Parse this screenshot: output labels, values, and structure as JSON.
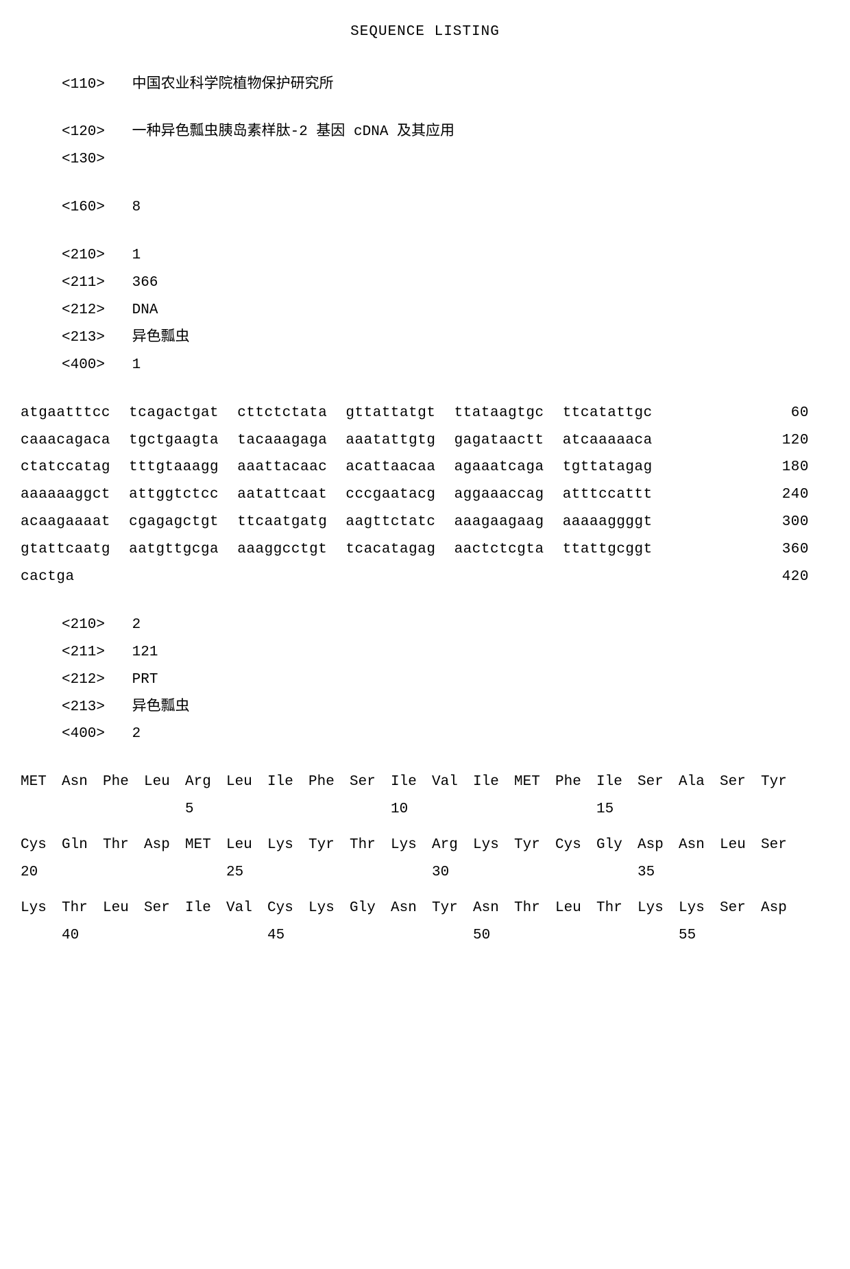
{
  "title": "SEQUENCE LISTING",
  "headers": {
    "h110": {
      "tag": "<110>",
      "val": "中国农业科学院植物保护研究所"
    },
    "h120": {
      "tag": "<120>",
      "val": "一种异色瓢虫胰岛素样肽-2 基因 cDNA 及其应用"
    },
    "h130": {
      "tag": "<130>",
      "val": ""
    },
    "h160": {
      "tag": "<160>",
      "val": "8"
    }
  },
  "seq1_meta": {
    "m210": {
      "tag": "<210>",
      "val": "1"
    },
    "m211": {
      "tag": "<211>",
      "val": "366"
    },
    "m212": {
      "tag": "<212>",
      "val": "DNA"
    },
    "m213": {
      "tag": "<213>",
      "val": "异色瓢虫"
    },
    "m400": {
      "tag": "<400>",
      "val": "1"
    }
  },
  "seq1": {
    "l1": {
      "g1": "atgaatttcc",
      "g2": "tcagactgat",
      "g3": "cttctctata",
      "g4": "gttattatgt",
      "g5": "ttataagtgc",
      "g6": "ttcatattgc",
      "n": "60"
    },
    "l2": {
      "g1": "caaacagaca",
      "g2": "tgctgaagta",
      "g3": "tacaaagaga",
      "g4": "aaatattgtg",
      "g5": "gagataactt",
      "g6": "atcaaaaaca",
      "n": "120"
    },
    "l3": {
      "g1": "ctatccatag",
      "g2": "tttgtaaagg",
      "g3": "aaattacaac",
      "g4": "acattaacaa",
      "g5": "agaaatcaga",
      "g6": "tgttatagag",
      "n": "180"
    },
    "l4": {
      "g1": "aaaaaaggct",
      "g2": "attggtctcc",
      "g3": "aatattcaat",
      "g4": "cccgaatacg",
      "g5": "aggaaaccag",
      "g6": "atttccattt",
      "n": "240"
    },
    "l5": {
      "g1": "acaagaaaat",
      "g2": "cgagagctgt",
      "g3": "ttcaatgatg",
      "g4": "aagttctatc",
      "g5": "aaagaagaag",
      "g6": "aaaaaggggt",
      "n": "300"
    },
    "l6": {
      "g1": "gtattcaatg",
      "g2": "aatgttgcga",
      "g3": "aaaggcctgt",
      "g4": "tcacatagag",
      "g5": "aactctcgta",
      "g6": "ttattgcggt",
      "n": "360"
    },
    "l7": {
      "g1": "cactga",
      "g2": "",
      "g3": "",
      "g4": "",
      "g5": "",
      "g6": "",
      "n": "420"
    }
  },
  "seq2_meta": {
    "m210": {
      "tag": "<210>",
      "val": "2"
    },
    "m211": {
      "tag": "<211>",
      "val": "121"
    },
    "m212": {
      "tag": "<212>",
      "val": "PRT"
    },
    "m213": {
      "tag": "<213>",
      "val": "异色瓢虫"
    },
    "m400": {
      "tag": "<400>",
      "val": "2"
    }
  },
  "prt": {
    "r1": [
      "MET",
      "Asn",
      "Phe",
      "Leu",
      "Arg",
      "Leu",
      "Ile",
      "Phe",
      "Ser",
      "Ile",
      "Val",
      "Ile",
      "MET",
      "Phe",
      "Ile",
      "Ser",
      "Ala",
      "Ser",
      "Tyr"
    ],
    "n1": {
      "p5": "5",
      "p10": "10",
      "p15": "15"
    },
    "r2": [
      "Cys",
      "Gln",
      "Thr",
      "Asp",
      "MET",
      "Leu",
      "Lys",
      "Tyr",
      "Thr",
      "Lys",
      "Arg",
      "Lys",
      "Tyr",
      "Cys",
      "Gly",
      "Asp",
      "Asn",
      "Leu",
      "Ser"
    ],
    "n2": {
      "p20": "20",
      "p25": "25",
      "p30": "30",
      "p35": "35"
    },
    "r3": [
      "Lys",
      "Thr",
      "Leu",
      "Ser",
      "Ile",
      "Val",
      "Cys",
      "Lys",
      "Gly",
      "Asn",
      "Tyr",
      "Asn",
      "Thr",
      "Leu",
      "Thr",
      "Lys",
      "Lys",
      "Ser",
      "Asp"
    ],
    "n3": {
      "p40": "40",
      "p45": "45",
      "p50": "50",
      "p55": "55"
    }
  }
}
